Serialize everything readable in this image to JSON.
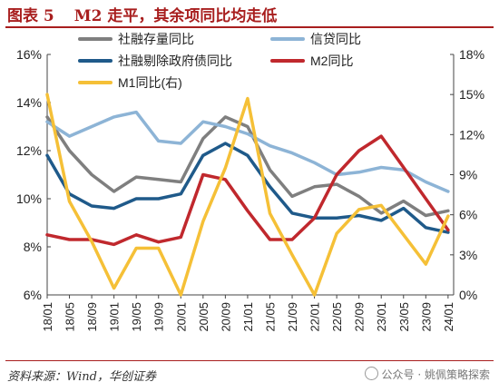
{
  "header": {
    "figure_no": "图表 5",
    "title": "M2 走平，其余项同比均走低"
  },
  "footer": {
    "source": "资料来源：Wind，华创证券",
    "watermark": "公众号 · 姚佩策略探索"
  },
  "chart_data": {
    "type": "line",
    "x": [
      "18/01",
      "18/05",
      "18/09",
      "19/01",
      "19/05",
      "19/09",
      "20/01",
      "20/05",
      "20/09",
      "21/01",
      "21/05",
      "21/09",
      "22/01",
      "22/05",
      "22/09",
      "23/01",
      "23/05",
      "23/09",
      "24/01"
    ],
    "xlim": [
      "18/01",
      "24/02"
    ],
    "y_left": {
      "ylim": [
        6,
        16
      ],
      "ticks": [
        "6%",
        "8%",
        "10%",
        "12%",
        "14%",
        "16%"
      ]
    },
    "y_right": {
      "ylim": [
        0,
        18
      ],
      "ticks": [
        "0%",
        "3%",
        "6%",
        "9%",
        "12%",
        "15%",
        "18%"
      ]
    },
    "grid": false,
    "legend_position": "top",
    "series": [
      {
        "name": "社融存量同比",
        "axis": "left",
        "color": "#7f7f7f",
        "values": [
          13.4,
          12.0,
          11.0,
          10.3,
          10.9,
          10.8,
          10.7,
          12.5,
          13.4,
          13.0,
          11.2,
          10.1,
          10.5,
          10.6,
          10.1,
          9.4,
          9.9,
          9.3,
          9.5
        ]
      },
      {
        "name": "信贷同比",
        "axis": "left",
        "color": "#8db4d6",
        "values": [
          13.2,
          12.6,
          13.0,
          13.4,
          13.6,
          12.4,
          12.3,
          13.2,
          13.0,
          12.7,
          12.2,
          11.9,
          11.5,
          11.0,
          11.1,
          11.3,
          11.2,
          10.7,
          10.3
        ]
      },
      {
        "name": "社融剔除政府债同比",
        "axis": "left",
        "color": "#1f5a8a",
        "values": [
          11.8,
          10.2,
          9.7,
          9.6,
          10.0,
          10.0,
          10.2,
          11.8,
          12.3,
          11.8,
          10.5,
          9.4,
          9.2,
          9.2,
          9.3,
          9.1,
          9.6,
          8.8,
          8.6
        ]
      },
      {
        "name": "M2同比",
        "axis": "left",
        "color": "#c0282d",
        "values": [
          8.5,
          8.3,
          8.3,
          8.1,
          8.5,
          8.2,
          8.4,
          11.0,
          10.8,
          9.5,
          8.3,
          8.3,
          9.2,
          11.0,
          12.0,
          12.6,
          11.3,
          10.0,
          8.7
        ]
      },
      {
        "name": "M1同比(右)",
        "axis": "right",
        "color": "#f5c037",
        "values": [
          15.0,
          7.0,
          4.0,
          0.5,
          3.5,
          3.5,
          0.0,
          5.5,
          9.5,
          14.7,
          6.1,
          3.0,
          0.0,
          4.6,
          6.4,
          6.7,
          4.5,
          2.3,
          5.9
        ]
      }
    ]
  }
}
